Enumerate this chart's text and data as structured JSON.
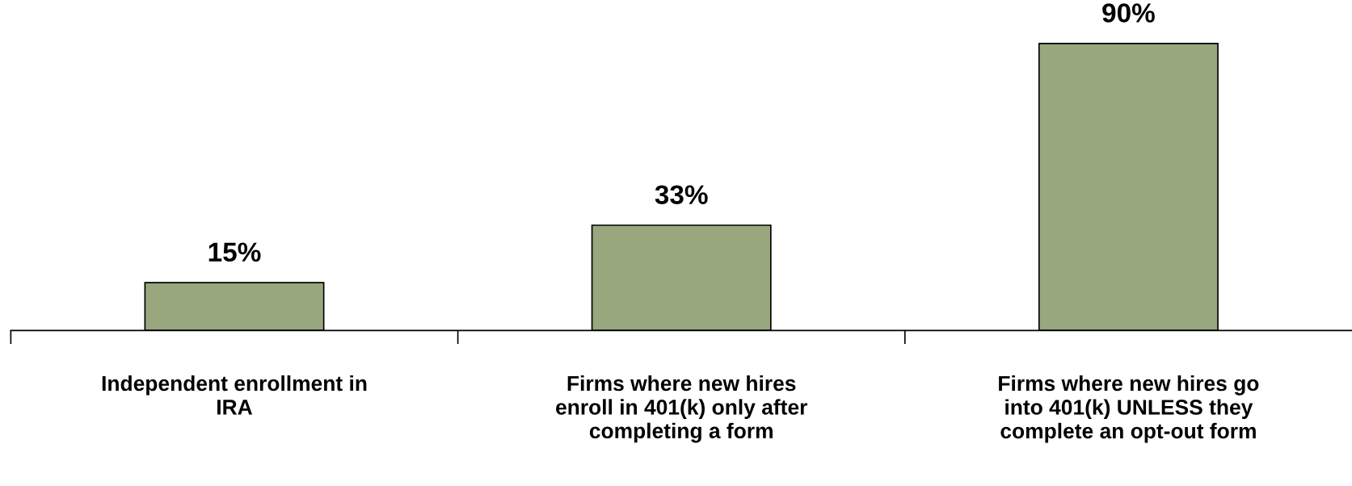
{
  "chart_data": {
    "type": "bar",
    "categories": [
      "Independent enrollment in\nIRA",
      "Firms where new hires\nenroll in 401(k) only after\ncompleting a form",
      "Firms where new hires go\ninto 401(k) UNLESS they\ncomplete an opt-out form"
    ],
    "values": [
      15,
      33,
      90
    ],
    "value_labels": [
      "15%",
      "33%",
      "90%"
    ],
    "color": "#98a77e",
    "grid": false,
    "tick_labels": "x"
  }
}
